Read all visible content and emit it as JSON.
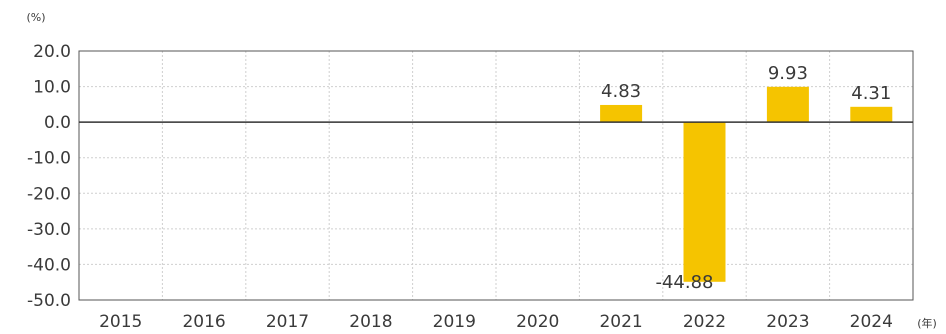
{
  "chart_data": {
    "type": "bar",
    "y_unit": "(%)",
    "x_unit": "(年)",
    "categories": [
      "2015",
      "2016",
      "2017",
      "2018",
      "2019",
      "2020",
      "2021",
      "2022",
      "2023",
      "2024"
    ],
    "values": [
      null,
      null,
      null,
      null,
      null,
      null,
      4.83,
      -44.88,
      9.93,
      4.31
    ],
    "value_labels": [
      "",
      "",
      "",
      "",
      "",
      "",
      "4.83",
      "-44.88",
      "9.93",
      "4.31"
    ],
    "ylim": [
      -50,
      20
    ],
    "yticks": [
      20,
      10,
      0,
      -10,
      -20,
      -30,
      -40,
      -50
    ],
    "ytick_labels": [
      "20.0",
      "10.0",
      "0.0",
      "-10.0",
      "-20.0",
      "-30.0",
      "-40.0",
      "-50.0"
    ],
    "grid": true,
    "bar_color": "#f5c400",
    "grid_color": "#cfcfcf",
    "axis_color": "#555555"
  }
}
